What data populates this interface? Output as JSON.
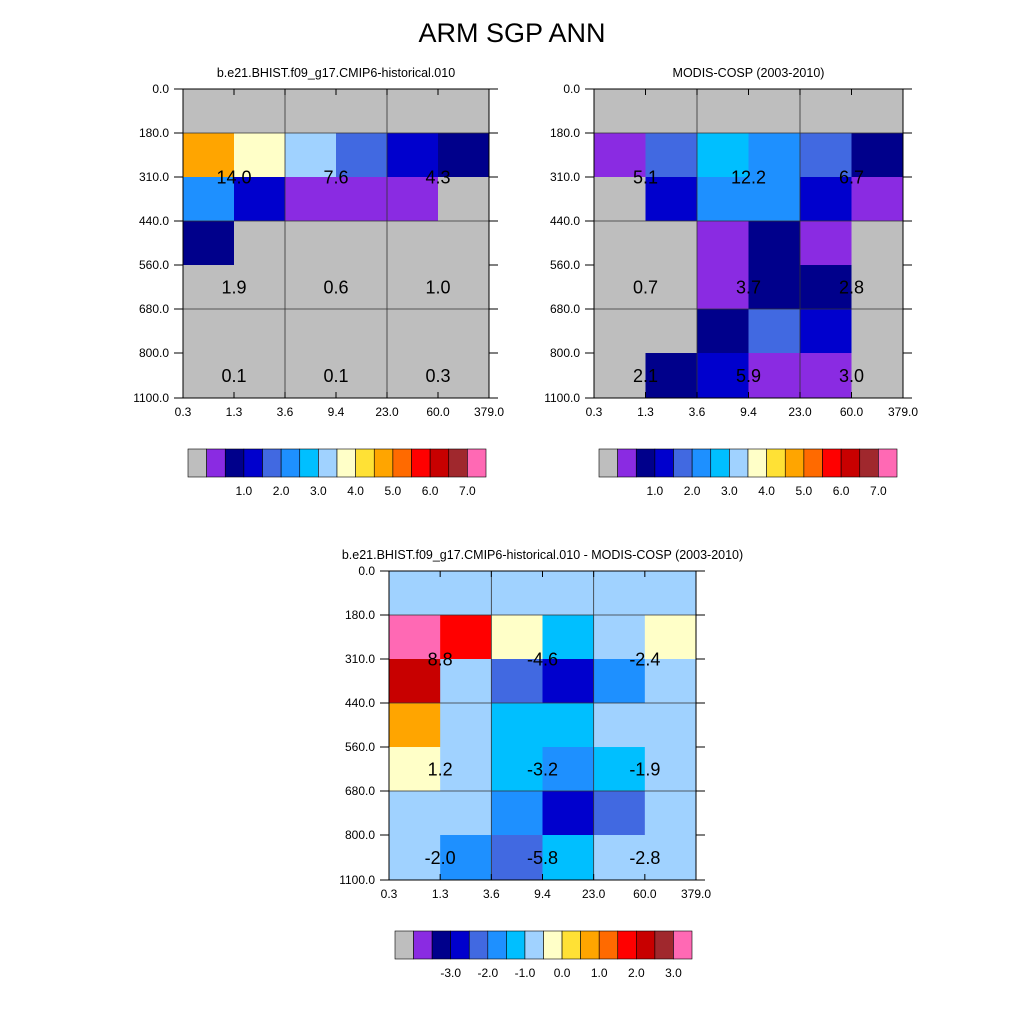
{
  "figure_title": "ARM SGP ANN",
  "colors": {
    "missing": "#bebebe",
    "frame": "#000000",
    "abs_palette": [
      "#bebebe",
      "#8a2be2",
      "#00008b",
      "#0000cd",
      "#4169e1",
      "#1e90ff",
      "#00bfff",
      "#a0d2ff",
      "#ffffc8",
      "#ffe135",
      "#ffa500",
      "#ff6a00",
      "#ff0000",
      "#c80000",
      "#a0282d",
      "#ff69b4"
    ],
    "diff_palette": [
      "#bebebe",
      "#8a2be2",
      "#00008b",
      "#0000cd",
      "#4169e1",
      "#1e90ff",
      "#00bfff",
      "#a0d2ff",
      "#ffffc8",
      "#ffe135",
      "#ffa500",
      "#ff6a00",
      "#ff0000",
      "#c80000",
      "#a0282d",
      "#ff69b4"
    ]
  },
  "chart_data": [
    {
      "type": "heatmap",
      "title": "b.e21.BHIST.f09_g17.CMIP6-historical.010",
      "xticks": [
        "0.3",
        "1.3",
        "3.6",
        "9.4",
        "23.0",
        "60.0",
        "379.0"
      ],
      "yticks": [
        "0.0",
        "180.0",
        "310.0",
        "440.0",
        "560.0",
        "680.0",
        "800.0",
        "1100.0"
      ],
      "cell_color_index": [
        [
          0,
          0,
          0,
          0,
          0,
          0
        ],
        [
          10,
          8,
          7,
          4,
          3,
          2
        ],
        [
          5,
          3,
          1,
          1,
          1,
          0
        ],
        [
          2,
          0,
          0,
          0,
          0,
          0
        ],
        [
          0,
          0,
          0,
          0,
          0,
          0
        ],
        [
          0,
          0,
          0,
          0,
          0,
          0
        ],
        [
          0,
          0,
          0,
          0,
          0,
          0
        ]
      ],
      "block_labels": [
        {
          "text": "14.0",
          "col": 1,
          "row": 1.5
        },
        {
          "text": "7.6",
          "col": 3,
          "row": 1.5
        },
        {
          "text": "4.3",
          "col": 5,
          "row": 1.5
        },
        {
          "text": "1.9",
          "col": 1,
          "row": 4
        },
        {
          "text": "0.6",
          "col": 3,
          "row": 4
        },
        {
          "text": "1.0",
          "col": 5,
          "row": 4
        },
        {
          "text": "0.1",
          "col": 1,
          "row": 6
        },
        {
          "text": "0.1",
          "col": 3,
          "row": 6
        },
        {
          "text": "0.3",
          "col": 5,
          "row": 6
        }
      ],
      "colorbar": {
        "labels": [
          "1.0",
          "2.0",
          "3.0",
          "4.0",
          "5.0",
          "6.0",
          "7.0"
        ]
      }
    },
    {
      "type": "heatmap",
      "title": "MODIS-COSP (2003-2010)",
      "xticks": [
        "0.3",
        "1.3",
        "3.6",
        "9.4",
        "23.0",
        "60.0",
        "379.0"
      ],
      "yticks": [
        "0.0",
        "180.0",
        "310.0",
        "440.0",
        "560.0",
        "680.0",
        "800.0",
        "1100.0"
      ],
      "cell_color_index": [
        [
          0,
          0,
          0,
          0,
          0,
          0
        ],
        [
          1,
          4,
          6,
          5,
          4,
          2
        ],
        [
          0,
          3,
          5,
          5,
          3,
          1
        ],
        [
          0,
          0,
          1,
          2,
          1,
          0
        ],
        [
          0,
          0,
          1,
          2,
          2,
          0
        ],
        [
          0,
          0,
          2,
          4,
          3,
          0
        ],
        [
          0,
          2,
          3,
          1,
          1,
          0
        ]
      ],
      "block_labels": [
        {
          "text": "5.1",
          "col": 1,
          "row": 1.5
        },
        {
          "text": "12.2",
          "col": 3,
          "row": 1.5
        },
        {
          "text": "6.7",
          "col": 5,
          "row": 1.5
        },
        {
          "text": "0.7",
          "col": 1,
          "row": 4
        },
        {
          "text": "3.7",
          "col": 3,
          "row": 4
        },
        {
          "text": "2.8",
          "col": 5,
          "row": 4
        },
        {
          "text": "2.1",
          "col": 1,
          "row": 6
        },
        {
          "text": "5.9",
          "col": 3,
          "row": 6
        },
        {
          "text": "3.0",
          "col": 5,
          "row": 6
        }
      ],
      "colorbar": {
        "labels": [
          "1.0",
          "2.0",
          "3.0",
          "4.0",
          "5.0",
          "6.0",
          "7.0"
        ]
      }
    },
    {
      "type": "heatmap",
      "title": "b.e21.BHIST.f09_g17.CMIP6-historical.010 - MODIS-COSP (2003-2010)",
      "xticks": [
        "0.3",
        "1.3",
        "3.6",
        "9.4",
        "23.0",
        "60.0",
        "379.0"
      ],
      "yticks": [
        "0.0",
        "180.0",
        "310.0",
        "440.0",
        "560.0",
        "680.0",
        "800.0",
        "1100.0"
      ],
      "cell_color_index": [
        [
          7,
          7,
          7,
          7,
          7,
          7
        ],
        [
          15,
          12,
          8,
          6,
          7,
          8
        ],
        [
          13,
          7,
          4,
          3,
          5,
          7
        ],
        [
          10,
          7,
          6,
          6,
          7,
          7
        ],
        [
          8,
          7,
          6,
          5,
          6,
          7
        ],
        [
          7,
          7,
          5,
          3,
          4,
          7
        ],
        [
          7,
          5,
          4,
          6,
          7,
          7
        ]
      ],
      "block_labels": [
        {
          "text": "8.8",
          "col": 1,
          "row": 1.5
        },
        {
          "text": "-4.6",
          "col": 3,
          "row": 1.5
        },
        {
          "text": "-2.4",
          "col": 5,
          "row": 1.5
        },
        {
          "text": "1.2",
          "col": 1,
          "row": 4
        },
        {
          "text": "-3.2",
          "col": 3,
          "row": 4
        },
        {
          "text": "-1.9",
          "col": 5,
          "row": 4
        },
        {
          "text": "-2.0",
          "col": 1,
          "row": 6
        },
        {
          "text": "-5.8",
          "col": 3,
          "row": 6
        },
        {
          "text": "-2.8",
          "col": 5,
          "row": 6
        }
      ],
      "colorbar": {
        "labels": [
          "-3.0",
          "-2.0",
          "-1.0",
          "0.0",
          "1.0",
          "2.0",
          "3.0"
        ]
      }
    }
  ]
}
